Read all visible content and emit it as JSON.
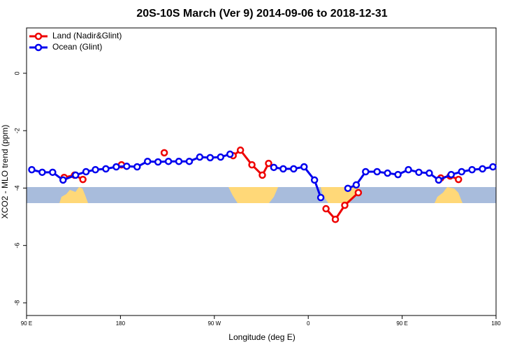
{
  "chart_data": {
    "type": "line",
    "title": "20S-10S March (Ver 9)   2014-09-06 to 2018-12-31",
    "xlabel": "Longitude (deg E)",
    "ylabel": "XCO2 - MLO trend (ppm)",
    "xlim": [
      90,
      540
    ],
    "xticks": [
      {
        "value": 90,
        "label": "90 E"
      },
      {
        "value": 180,
        "label": "180"
      },
      {
        "value": 270,
        "label": "90 W"
      },
      {
        "value": 360,
        "label": "0"
      },
      {
        "value": 450,
        "label": "90 E"
      },
      {
        "value": 540,
        "label": "180"
      }
    ],
    "ylim": [
      -8.44,
      1.58
    ],
    "yticks": [
      0,
      -2,
      -4,
      -6,
      -8
    ],
    "legend": "top-left",
    "series": [
      {
        "name": "Land (Nadir&Glint)",
        "color": "#ee0000",
        "x": [
          126,
          136,
          144,
          null,
          181,
          null,
          222,
          null,
          288,
          295,
          306,
          316,
          322,
          null,
          377,
          386,
          395,
          408,
          null,
          487,
          496,
          504
        ],
        "values": [
          -3.63,
          -3.55,
          -3.7,
          null,
          -3.19,
          null,
          -2.77,
          null,
          -2.87,
          -2.68,
          -3.19,
          -3.55,
          -3.14,
          null,
          -4.72,
          -5.09,
          -4.6,
          -4.16,
          null,
          -3.65,
          -3.58,
          -3.7
        ]
      },
      {
        "name": "Ocean (Glint)",
        "color": "#0000ee",
        "x": [
          95,
          105,
          115,
          125,
          137,
          147,
          156,
          166,
          176,
          186,
          196,
          206,
          216,
          226,
          236,
          246,
          256,
          266,
          276,
          285,
          null,
          327,
          336,
          346,
          356,
          366,
          372,
          null,
          398,
          406,
          415,
          426,
          436,
          446,
          456,
          466,
          476,
          485,
          497,
          507,
          517,
          527,
          537
        ],
        "values": [
          -3.36,
          -3.45,
          -3.45,
          -3.72,
          -3.55,
          -3.43,
          -3.36,
          -3.33,
          -3.26,
          -3.24,
          -3.26,
          -3.07,
          -3.09,
          -3.07,
          -3.07,
          -3.07,
          -2.92,
          -2.94,
          -2.92,
          -2.82,
          null,
          -3.28,
          -3.33,
          -3.33,
          -3.26,
          -3.72,
          -4.33,
          null,
          -4.01,
          -3.89,
          -3.43,
          -3.43,
          -3.48,
          -3.53,
          -3.36,
          -3.45,
          -3.48,
          -3.72,
          -3.53,
          -3.43,
          -3.36,
          -3.33,
          -3.26
        ]
      }
    ]
  }
}
